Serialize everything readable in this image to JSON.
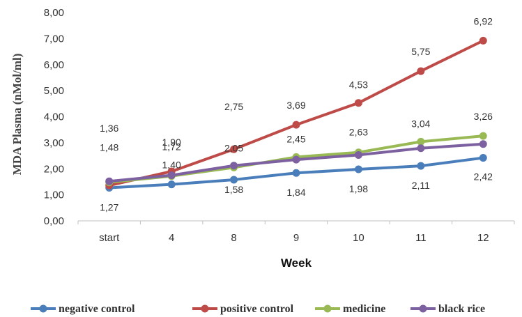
{
  "chart_data": {
    "type": "line",
    "xlabel": "Week",
    "ylabel": "MDA Plasma (nMol/ml)",
    "categories": [
      "start",
      "4",
      "8",
      "9",
      "10",
      "11",
      "12"
    ],
    "ylim": [
      0,
      8
    ],
    "yticks": [
      "0,00",
      "1,00",
      "2,00",
      "3,00",
      "4,00",
      "5,00",
      "6,00",
      "7,00",
      "8,00"
    ],
    "grid": false,
    "legend_position": "bottom",
    "series": [
      {
        "name": "negative control",
        "color": "#4a7ebb",
        "values": [
          1.27,
          1.4,
          1.58,
          1.84,
          1.98,
          2.11,
          2.42
        ],
        "labels": [
          "1,27",
          "1,40",
          "1,58",
          "1,84",
          "1,98",
          "2,11",
          "2,42"
        ]
      },
      {
        "name": "positive control",
        "color": "#be4b48",
        "values": [
          1.36,
          1.9,
          2.75,
          3.69,
          4.53,
          5.75,
          6.92
        ],
        "labels": [
          "1,36",
          "1,90",
          "2,75",
          "3,69",
          "4,53",
          "5,75",
          "6,92"
        ]
      },
      {
        "name": "medicine",
        "color": "#98b954",
        "values": [
          1.48,
          1.72,
          2.05,
          2.45,
          2.63,
          3.04,
          3.26
        ],
        "labels": [
          "1,48",
          "1,72",
          "2,05",
          "2,45",
          "2,63",
          "3,04",
          "3,26"
        ]
      },
      {
        "name": "black rice",
        "color": "#7d60a0",
        "values": [
          1.52,
          1.75,
          2.12,
          2.35,
          2.53,
          2.79,
          2.95
        ],
        "labels": []
      }
    ]
  }
}
